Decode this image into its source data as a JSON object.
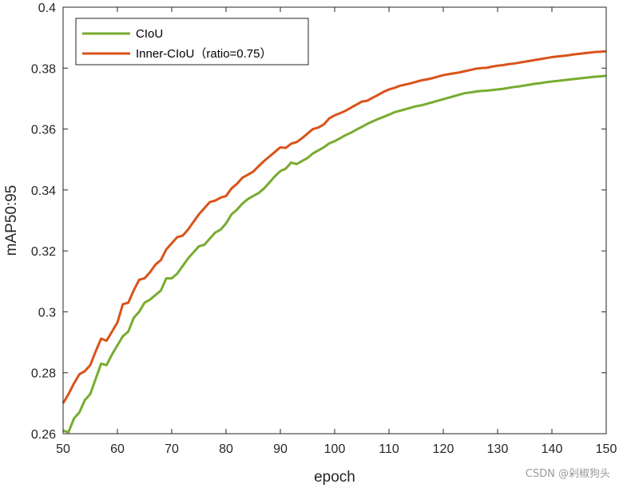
{
  "chart_data": {
    "type": "line",
    "xlabel": "epoch",
    "ylabel": "mAP50:95",
    "xlim": [
      50,
      150
    ],
    "ylim": [
      0.26,
      0.4
    ],
    "xticks": [
      50,
      60,
      70,
      80,
      90,
      100,
      110,
      120,
      130,
      140,
      150
    ],
    "xtick_labels": [
      "50",
      "60",
      "70",
      "80",
      "90",
      "100",
      "110",
      "120",
      "130",
      "140",
      "150"
    ],
    "yticks": [
      0.26,
      0.28,
      0.3,
      0.32,
      0.34,
      0.36,
      0.38,
      0.4
    ],
    "ytick_labels": [
      "0.26",
      "0.28",
      "0.3",
      "0.32",
      "0.34",
      "0.36",
      "0.38",
      "0.4"
    ],
    "grid": false,
    "legend_position": "top-left",
    "series": [
      {
        "name": "CIoU",
        "color": "#77ac30",
        "points": [
          [
            50,
            0.261
          ],
          [
            51,
            0.2605
          ],
          [
            52,
            0.265
          ],
          [
            53,
            0.267
          ],
          [
            54,
            0.271
          ],
          [
            55,
            0.273
          ],
          [
            56,
            0.278
          ],
          [
            57,
            0.283
          ],
          [
            58,
            0.2825
          ],
          [
            59,
            0.286
          ],
          [
            60,
            0.289
          ],
          [
            61,
            0.292
          ],
          [
            62,
            0.2935
          ],
          [
            63,
            0.298
          ],
          [
            64,
            0.3
          ],
          [
            65,
            0.303
          ],
          [
            66,
            0.304
          ],
          [
            67,
            0.3055
          ],
          [
            68,
            0.307
          ],
          [
            69,
            0.311
          ],
          [
            70,
            0.311
          ],
          [
            71,
            0.3125
          ],
          [
            72,
            0.315
          ],
          [
            73,
            0.3175
          ],
          [
            74,
            0.3195
          ],
          [
            75,
            0.3215
          ],
          [
            76,
            0.322
          ],
          [
            77,
            0.324
          ],
          [
            78,
            0.326
          ],
          [
            79,
            0.327
          ],
          [
            80,
            0.329
          ],
          [
            81,
            0.332
          ],
          [
            82,
            0.3335
          ],
          [
            83,
            0.3355
          ],
          [
            84,
            0.337
          ],
          [
            85,
            0.338
          ],
          [
            86,
            0.339
          ],
          [
            87,
            0.3405
          ],
          [
            88,
            0.3425
          ],
          [
            89,
            0.3445
          ],
          [
            90,
            0.3462
          ],
          [
            91,
            0.347
          ],
          [
            92,
            0.349
          ],
          [
            93,
            0.3485
          ],
          [
            94,
            0.3495
          ],
          [
            95,
            0.3505
          ],
          [
            96,
            0.352
          ],
          [
            97,
            0.353
          ],
          [
            98,
            0.354
          ],
          [
            99,
            0.3553
          ],
          [
            100,
            0.356
          ],
          [
            101,
            0.357
          ],
          [
            102,
            0.358
          ],
          [
            103,
            0.3588
          ],
          [
            104,
            0.3598
          ],
          [
            105,
            0.3607
          ],
          [
            106,
            0.3617
          ],
          [
            107,
            0.3625
          ],
          [
            108,
            0.3633
          ],
          [
            109,
            0.364
          ],
          [
            110,
            0.3647
          ],
          [
            111,
            0.3655
          ],
          [
            112,
            0.366
          ],
          [
            113,
            0.3665
          ],
          [
            114,
            0.367
          ],
          [
            115,
            0.3675
          ],
          [
            116,
            0.3678
          ],
          [
            117,
            0.3683
          ],
          [
            118,
            0.3688
          ],
          [
            119,
            0.3693
          ],
          [
            120,
            0.3698
          ],
          [
            121,
            0.3703
          ],
          [
            122,
            0.3708
          ],
          [
            123,
            0.3713
          ],
          [
            124,
            0.3718
          ],
          [
            125,
            0.372
          ],
          [
            126,
            0.3723
          ],
          [
            127,
            0.3725
          ],
          [
            128,
            0.3726
          ],
          [
            129,
            0.3728
          ],
          [
            130,
            0.373
          ],
          [
            131,
            0.3732
          ],
          [
            132,
            0.3735
          ],
          [
            133,
            0.3738
          ],
          [
            134,
            0.374
          ],
          [
            135,
            0.3743
          ],
          [
            136,
            0.3746
          ],
          [
            137,
            0.3749
          ],
          [
            138,
            0.3751
          ],
          [
            139,
            0.3754
          ],
          [
            140,
            0.3756
          ],
          [
            141,
            0.3758
          ],
          [
            142,
            0.376
          ],
          [
            143,
            0.3762
          ],
          [
            144,
            0.3764
          ],
          [
            145,
            0.3766
          ],
          [
            146,
            0.3768
          ],
          [
            147,
            0.377
          ],
          [
            148,
            0.3772
          ],
          [
            149,
            0.3773
          ],
          [
            150,
            0.3775
          ]
        ]
      },
      {
        "name": "Inner-CIoU（ratio=0.75）",
        "color": "#d95319",
        "points": [
          [
            50,
            0.27
          ],
          [
            51,
            0.273
          ],
          [
            52,
            0.2765
          ],
          [
            53,
            0.2795
          ],
          [
            54,
            0.2805
          ],
          [
            55,
            0.2825
          ],
          [
            56,
            0.287
          ],
          [
            57,
            0.2912
          ],
          [
            58,
            0.2905
          ],
          [
            59,
            0.2935
          ],
          [
            60,
            0.2965
          ],
          [
            61,
            0.3025
          ],
          [
            62,
            0.303
          ],
          [
            63,
            0.307
          ],
          [
            64,
            0.3105
          ],
          [
            65,
            0.311
          ],
          [
            66,
            0.313
          ],
          [
            67,
            0.3155
          ],
          [
            68,
            0.317
          ],
          [
            69,
            0.3205
          ],
          [
            70,
            0.3225
          ],
          [
            71,
            0.3245
          ],
          [
            72,
            0.325
          ],
          [
            73,
            0.327
          ],
          [
            74,
            0.3295
          ],
          [
            75,
            0.332
          ],
          [
            76,
            0.334
          ],
          [
            77,
            0.336
          ],
          [
            78,
            0.3365
          ],
          [
            79,
            0.3375
          ],
          [
            80,
            0.338
          ],
          [
            81,
            0.3405
          ],
          [
            82,
            0.342
          ],
          [
            83,
            0.344
          ],
          [
            84,
            0.345
          ],
          [
            85,
            0.346
          ],
          [
            86,
            0.3478
          ],
          [
            87,
            0.3495
          ],
          [
            88,
            0.351
          ],
          [
            89,
            0.3525
          ],
          [
            90,
            0.354
          ],
          [
            91,
            0.3538
          ],
          [
            92,
            0.3552
          ],
          [
            93,
            0.3557
          ],
          [
            94,
            0.357
          ],
          [
            95,
            0.3585
          ],
          [
            96,
            0.36
          ],
          [
            97,
            0.3605
          ],
          [
            98,
            0.3615
          ],
          [
            99,
            0.3635
          ],
          [
            100,
            0.3645
          ],
          [
            101,
            0.3652
          ],
          [
            102,
            0.366
          ],
          [
            103,
            0.367
          ],
          [
            104,
            0.368
          ],
          [
            105,
            0.369
          ],
          [
            106,
            0.3693
          ],
          [
            107,
            0.3703
          ],
          [
            108,
            0.3712
          ],
          [
            109,
            0.3722
          ],
          [
            110,
            0.373
          ],
          [
            111,
            0.3735
          ],
          [
            112,
            0.3742
          ],
          [
            113,
            0.3746
          ],
          [
            114,
            0.375
          ],
          [
            115,
            0.3755
          ],
          [
            116,
            0.376
          ],
          [
            117,
            0.3763
          ],
          [
            118,
            0.3767
          ],
          [
            119,
            0.3772
          ],
          [
            120,
            0.3777
          ],
          [
            121,
            0.378
          ],
          [
            122,
            0.3783
          ],
          [
            123,
            0.3786
          ],
          [
            124,
            0.379
          ],
          [
            125,
            0.3794
          ],
          [
            126,
            0.3798
          ],
          [
            127,
            0.38
          ],
          [
            128,
            0.3801
          ],
          [
            129,
            0.3805
          ],
          [
            130,
            0.3808
          ],
          [
            131,
            0.381
          ],
          [
            132,
            0.3813
          ],
          [
            133,
            0.3815
          ],
          [
            134,
            0.3818
          ],
          [
            135,
            0.3821
          ],
          [
            136,
            0.3824
          ],
          [
            137,
            0.3827
          ],
          [
            138,
            0.383
          ],
          [
            139,
            0.3833
          ],
          [
            140,
            0.3836
          ],
          [
            141,
            0.3838
          ],
          [
            142,
            0.384
          ],
          [
            143,
            0.3842
          ],
          [
            144,
            0.3845
          ],
          [
            145,
            0.3847
          ],
          [
            146,
            0.3849
          ],
          [
            147,
            0.3851
          ],
          [
            148,
            0.3853
          ],
          [
            149,
            0.3854
          ],
          [
            150,
            0.3855
          ]
        ]
      }
    ]
  },
  "watermark": "CSDN @剁椒狗头"
}
